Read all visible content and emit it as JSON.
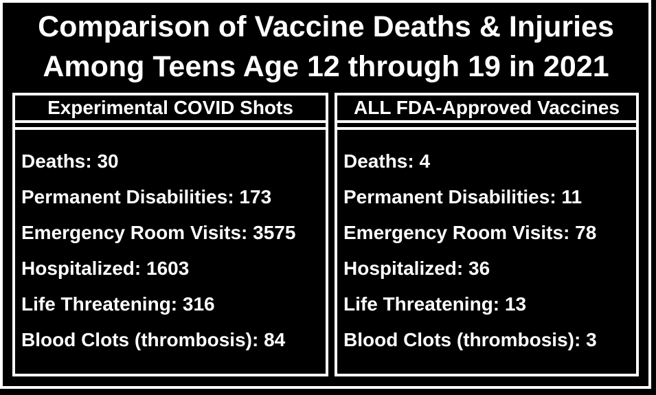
{
  "colors": {
    "background": "#000000",
    "text": "#ffffff",
    "border": "#ffffff"
  },
  "title": {
    "line1": "Comparison of Vaccine Deaths & Injuries",
    "line2": "Among Teens Age 12 through 19 in 2021"
  },
  "table": {
    "columns": [
      {
        "header": "Experimental COVID Shots",
        "rows": [
          "Deaths: 30",
          "Permanent Disabilities: 173",
          "Emergency Room Visits: 3575",
          "Hospitalized: 1603",
          "Life Threatening: 316",
          "Blood Clots (thrombosis): 84"
        ]
      },
      {
        "header": "ALL FDA-Approved Vaccines",
        "rows": [
          "Deaths: 4",
          "Permanent Disabilities: 11",
          "Emergency Room Visits: 78",
          "Hospitalized: 36",
          "Life Threatening: 13",
          "Blood Clots (thrombosis): 3"
        ]
      }
    ]
  },
  "chart_data": {
    "type": "table",
    "title": "Comparison of Vaccine Deaths & Injuries Among Teens Age 12 through 19 in 2021",
    "categories": [
      "Deaths",
      "Permanent Disabilities",
      "Emergency Room Visits",
      "Hospitalized",
      "Life Threatening",
      "Blood Clots (thrombosis)"
    ],
    "series": [
      {
        "name": "Experimental COVID Shots",
        "values": [
          30,
          173,
          3575,
          1603,
          316,
          84
        ]
      },
      {
        "name": "ALL FDA-Approved Vaccines",
        "values": [
          4,
          11,
          78,
          36,
          13,
          3
        ]
      }
    ],
    "legend_position": "column headers",
    "grid": false
  }
}
